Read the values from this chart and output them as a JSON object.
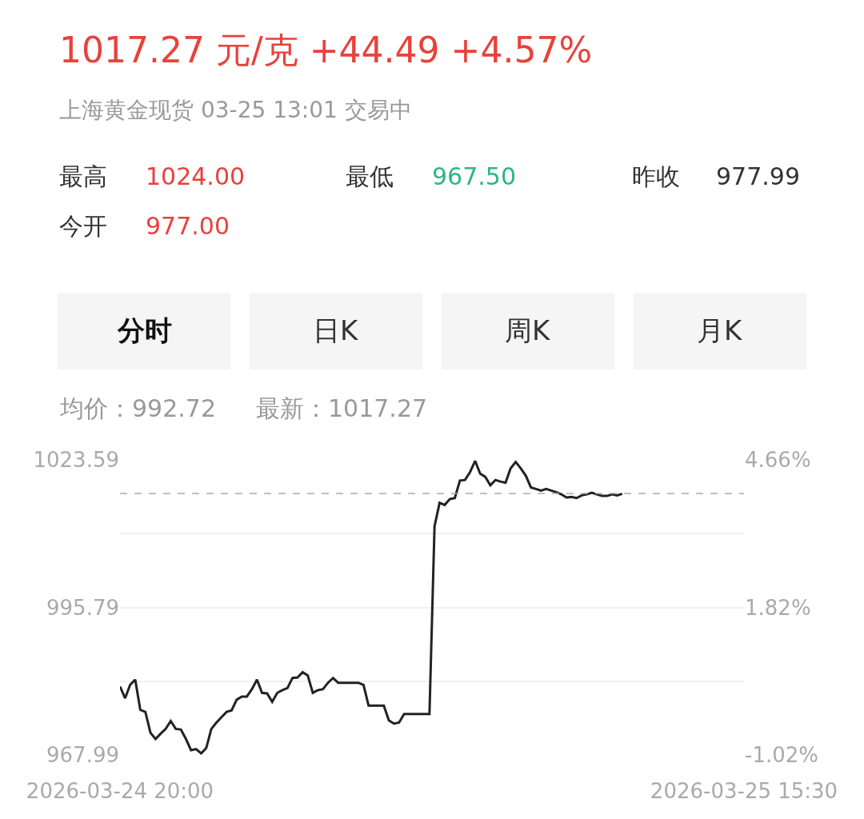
{
  "chart_data": {
    "type": "line",
    "title": "1017.27 元/克 +44.49 +4.57%",
    "subtitle": "上海黄金现货 03-25 13:01 交易中",
    "annotations": [
      "最高",
      "1024.00",
      "最低",
      "967.50",
      "昨收",
      "977.99",
      "今开",
      "977.00",
      "分时",
      "日K",
      "周K",
      "月K",
      "均价：992.72",
      "最新：1017.27"
    ],
    "categories": [
      "2026-03-24 20:00",
      null,
      null,
      null,
      null,
      null,
      null,
      null,
      null,
      null,
      null,
      null,
      null,
      null,
      null,
      null,
      null,
      null,
      null,
      null,
      null,
      null,
      null,
      null,
      null,
      null,
      null,
      null,
      null,
      null,
      null,
      null,
      null,
      null,
      null,
      null,
      null,
      null,
      null,
      null,
      null,
      null,
      null,
      null,
      null,
      null,
      null,
      null,
      null,
      null,
      null,
      null,
      null,
      null,
      null,
      null,
      null,
      null,
      null,
      null,
      null,
      null,
      null,
      null,
      null,
      null,
      null,
      null,
      null,
      null,
      null,
      null,
      null,
      null,
      null,
      null,
      null,
      null,
      null,
      null,
      null,
      null,
      null,
      null,
      null,
      null,
      null,
      null,
      null,
      null,
      null,
      null,
      null,
      null,
      null,
      null,
      null,
      null,
      null,
      null,
      null,
      null,
      null,
      null,
      null,
      null,
      null,
      null,
      null,
      null,
      null,
      null,
      null,
      null,
      null,
      null,
      null,
      null,
      null,
      null,
      null,
      null,
      null,
      "2026-03-25 15:30"
    ],
    "series": [
      {
        "color": "#222222",
        "values": [
          980.9,
          978.7,
          981.2,
          982.2,
          976.5,
          976.1,
          972.2,
          971.0,
          972.0,
          972.9,
          974.4,
          972.9,
          972.8,
          971.0,
          968.9,
          969.1,
          968.3,
          969.3,
          972.9,
          974.1,
          975.1,
          976.1,
          976.4,
          978.4,
          979.0,
          979.0,
          980.4,
          982.2,
          979.7,
          979.6,
          978.0,
          979.7,
          980.2,
          980.6,
          982.5,
          982.6,
          983.6,
          983.0,
          979.7,
          980.2,
          980.4,
          981.6,
          982.5,
          981.6,
          981.6,
          981.6,
          981.6,
          981.6,
          981.2,
          977.3,
          977.3,
          977.3,
          977.3,
          974.5,
          973.9,
          974.1,
          975.7,
          975.7,
          975.7,
          975.7,
          975.7,
          975.7,
          1011.1,
          1015.5,
          1015.1,
          1016.2,
          1016.4,
          1019.7,
          1019.8,
          1021.3,
          1023.4,
          1021.0,
          1020.4,
          1018.8,
          1019.8,
          1019.5,
          1019.3,
          1022.0,
          1023.2,
          1022.0,
          1020.6,
          1018.4,
          1018.1,
          1017.8,
          1018.1,
          1017.8,
          1017.5,
          1017.1,
          1016.5,
          1016.6,
          1016.4,
          1016.9,
          1017.1,
          1017.4,
          1017.1,
          1016.8,
          1016.8,
          1017.1,
          1016.9,
          1017.2,
          null,
          null,
          null,
          null,
          null,
          null,
          null,
          null,
          null,
          null,
          null,
          null,
          null,
          null,
          null,
          null,
          null,
          null,
          null,
          null,
          null,
          null,
          null,
          null
        ]
      }
    ],
    "ylim": [
      967.99,
      1023.59
    ],
    "yticks": [
      1023.59,
      {
        "value": 1009.69,
        "label": null
      },
      995.79,
      {
        "value": 981.89,
        "label": null
      },
      967.99
    ],
    "y2lim": [
      -1.02,
      4.66
    ],
    "y2ticks": [
      {
        "value": 4.66,
        "label": "4.66%"
      },
      {
        "value": 1.82,
        "label": "1.82%"
      },
      {
        "value": -1.02,
        "label": "-1.02%"
      }
    ],
    "ref_lines": [
      {
        "axis": "y",
        "value": 1017.27,
        "color": "#aaaaaa",
        "line_style": "dashed"
      }
    ],
    "grid": "y",
    "marker": "none",
    "line_style": "solid"
  }
}
